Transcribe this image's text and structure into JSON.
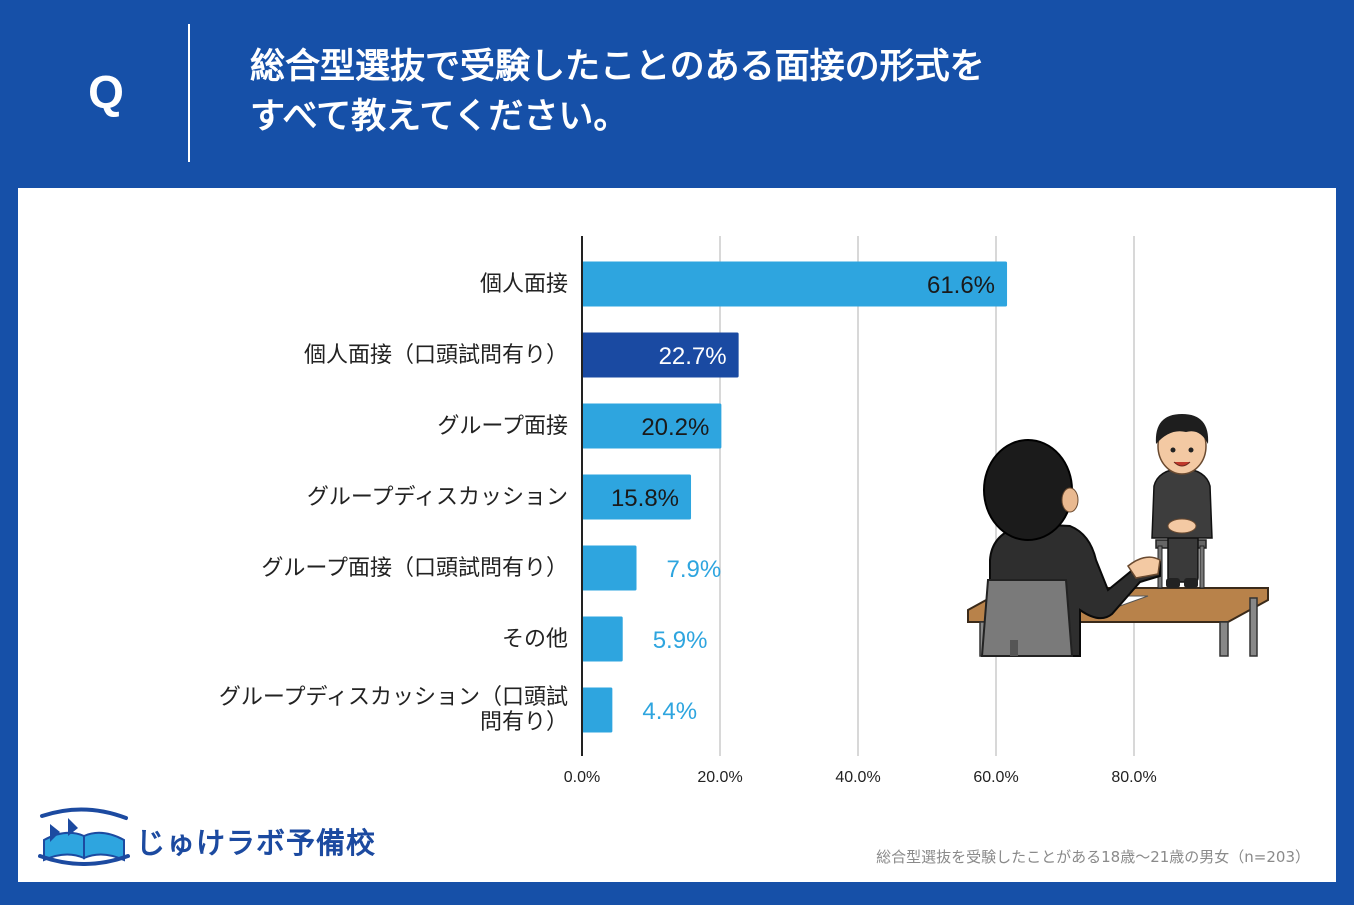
{
  "header": {
    "q_mark": "Q",
    "title_line1": "総合型選抜で受験したことのある面接の形式を",
    "title_line2": "すべて教えてください。"
  },
  "chart_data": {
    "type": "bar",
    "orientation": "horizontal",
    "categories": [
      "個人面接",
      "個人面接（口頭試問有り）",
      "グループ面接",
      "グループディスカッション",
      "グループ面接（口頭試問有り）",
      "その他",
      "グループディスカッション（口頭試問有り）"
    ],
    "category_lines": [
      [
        "個人面接"
      ],
      [
        "個人面接（口頭試問有り）"
      ],
      [
        "グループ面接"
      ],
      [
        "グループディスカッション"
      ],
      [
        "グループ面接（口頭試問有り）"
      ],
      [
        "その他"
      ],
      [
        "グループディスカッション（口頭試",
        "問有り）"
      ]
    ],
    "values": [
      61.6,
      22.7,
      20.2,
      15.8,
      7.9,
      5.9,
      4.4
    ],
    "value_labels": [
      "61.6%",
      "22.7%",
      "20.2%",
      "15.8%",
      "7.9%",
      "5.9%",
      "4.4%"
    ],
    "highlight_index": 1,
    "xlim": [
      0,
      80
    ],
    "ticks": [
      0,
      20,
      40,
      60,
      80
    ],
    "tick_labels": [
      "0.0%",
      "20.0%",
      "40.0%",
      "60.0%",
      "80.0%"
    ],
    "grid": true,
    "colors": {
      "bar": "#2ea5df",
      "highlight": "#1a4aa2",
      "label_outside": "#2ea5df",
      "grid": "#cccccc"
    }
  },
  "logo": {
    "text": "じゅけラボ予備校"
  },
  "footnote": "総合型選抜を受験したことがある18歳～21歳の男女（n=203）",
  "colors": {
    "brand_blue": "#1650a8",
    "white": "#ffffff"
  }
}
